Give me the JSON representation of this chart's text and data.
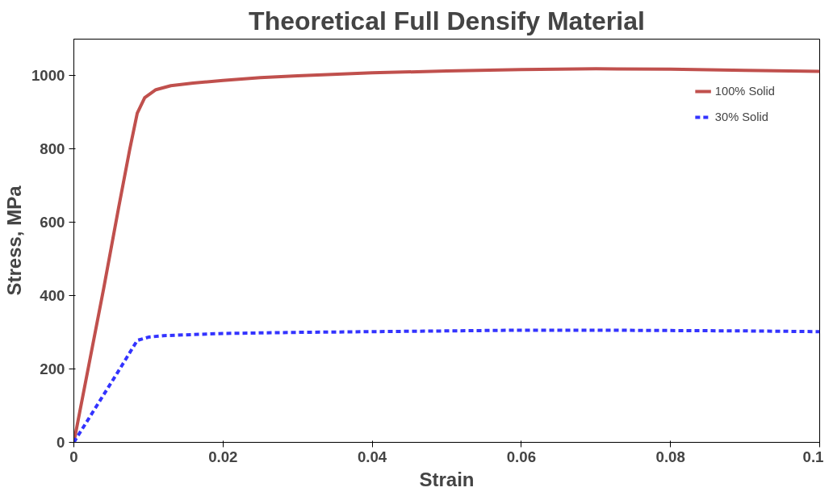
{
  "chart_data": {
    "type": "line",
    "title": "Theoretical Full Densify Material",
    "xlabel": "Strain",
    "ylabel": "Stress, MPa",
    "series": [
      {
        "name": "100% Solid",
        "color": "#c0504d",
        "line_style": "solid",
        "x": [
          0,
          0.002,
          0.004,
          0.006,
          0.0075,
          0.0085,
          0.0095,
          0.011,
          0.013,
          0.016,
          0.02,
          0.025,
          0.03,
          0.04,
          0.05,
          0.06,
          0.07,
          0.08,
          0.09,
          0.1
        ],
        "values": [
          0,
          210,
          420,
          640,
          800,
          898,
          940,
          962,
          973,
          980,
          987,
          995,
          1000,
          1008,
          1013,
          1017,
          1019,
          1018,
          1015,
          1012
        ]
      },
      {
        "name": "30% Solid",
        "color": "#3333ff",
        "line_style": "dashed",
        "x": [
          0,
          0.002,
          0.004,
          0.006,
          0.0085,
          0.01,
          0.012,
          0.02,
          0.03,
          0.04,
          0.05,
          0.06,
          0.07,
          0.08,
          0.09,
          0.1
        ],
        "values": [
          0,
          65,
          130,
          195,
          278,
          287,
          291,
          297,
          300,
          302,
          304,
          306,
          306,
          305,
          304,
          302
        ]
      }
    ],
    "xlim": [
      0,
      0.1
    ],
    "ylim": [
      0,
      1100
    ],
    "xticks": [
      0,
      0.02,
      0.04,
      0.06,
      0.08,
      0.1
    ],
    "yticks": [
      0,
      200,
      400,
      600,
      800,
      1000
    ],
    "grid": false,
    "legend": "top right",
    "marker": "none"
  }
}
